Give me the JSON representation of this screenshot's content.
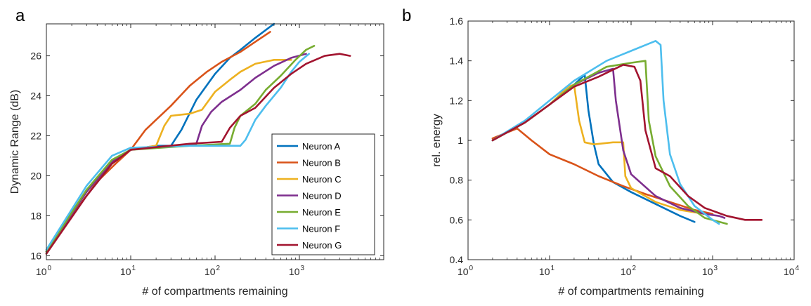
{
  "panels": {
    "a": "a",
    "b": "b"
  },
  "chart_data": [
    {
      "type": "line",
      "panel": "a",
      "xlabel": "# of compartments remaining",
      "ylabel": "Dynamic Range (dB)",
      "xscale": "log",
      "xlim": [
        1,
        10000
      ],
      "ylim": [
        15.8,
        27.6
      ],
      "xtick_labels": [
        "10",
        "10",
        "10",
        "10"
      ],
      "xtick_exps": [
        "0",
        "1",
        "2",
        "3"
      ],
      "xtick_values": [
        1,
        10,
        100,
        1000
      ],
      "ytick_labels": [
        "16",
        "18",
        "20",
        "22",
        "24",
        "26"
      ],
      "ytick_values": [
        16,
        18,
        20,
        22,
        24,
        26
      ],
      "legend": {
        "position": "lower-right",
        "entries": [
          "Neuron A",
          "Neuron B",
          "Neuron C",
          "Neuron D",
          "Neuron E",
          "Neuron F",
          "Neuron G"
        ]
      },
      "series": [
        {
          "name": "Neuron A",
          "color": "#0072bd",
          "points": [
            [
              1,
              16.2
            ],
            [
              2,
              18.2
            ],
            [
              4,
              19.9
            ],
            [
              7,
              20.9
            ],
            [
              10,
              21.3
            ],
            [
              20,
              21.5
            ],
            [
              30,
              21.5
            ],
            [
              40,
              22.3
            ],
            [
              60,
              23.8
            ],
            [
              100,
              25.1
            ],
            [
              150,
              25.9
            ],
            [
              200,
              26.3
            ],
            [
              300,
              26.9
            ],
            [
              500,
              27.6
            ]
          ]
        },
        {
          "name": "Neuron B",
          "color": "#d95319",
          "points": [
            [
              1,
              16.1
            ],
            [
              2,
              18.0
            ],
            [
              4,
              19.7
            ],
            [
              7,
              20.7
            ],
            [
              10,
              21.3
            ],
            [
              15,
              22.3
            ],
            [
              20,
              22.8
            ],
            [
              30,
              23.5
            ],
            [
              50,
              24.5
            ],
            [
              80,
              25.2
            ],
            [
              120,
              25.7
            ],
            [
              200,
              26.2
            ],
            [
              300,
              26.7
            ],
            [
              450,
              27.2
            ]
          ]
        },
        {
          "name": "Neuron C",
          "color": "#edb120",
          "points": [
            [
              1,
              16.2
            ],
            [
              3,
              19.2
            ],
            [
              6,
              20.7
            ],
            [
              10,
              21.3
            ],
            [
              20,
              21.5
            ],
            [
              25,
              22.5
            ],
            [
              30,
              23.0
            ],
            [
              50,
              23.1
            ],
            [
              70,
              23.3
            ],
            [
              100,
              24.2
            ],
            [
              150,
              24.8
            ],
            [
              200,
              25.2
            ],
            [
              300,
              25.6
            ],
            [
              500,
              25.8
            ],
            [
              800,
              25.8
            ]
          ]
        },
        {
          "name": "Neuron D",
          "color": "#7e2f8e",
          "points": [
            [
              1,
              16.2
            ],
            [
              3,
              19.2
            ],
            [
              6,
              20.7
            ],
            [
              10,
              21.3
            ],
            [
              30,
              21.5
            ],
            [
              60,
              21.6
            ],
            [
              70,
              22.5
            ],
            [
              90,
              23.2
            ],
            [
              120,
              23.7
            ],
            [
              200,
              24.3
            ],
            [
              300,
              24.9
            ],
            [
              500,
              25.5
            ],
            [
              800,
              25.9
            ],
            [
              1200,
              26.1
            ]
          ]
        },
        {
          "name": "Neuron E",
          "color": "#77ac30",
          "points": [
            [
              1,
              16.2
            ],
            [
              3,
              19.3
            ],
            [
              6,
              20.8
            ],
            [
              10,
              21.3
            ],
            [
              50,
              21.5
            ],
            [
              150,
              21.6
            ],
            [
              170,
              22.4
            ],
            [
              200,
              23.0
            ],
            [
              300,
              23.6
            ],
            [
              400,
              24.3
            ],
            [
              600,
              25.0
            ],
            [
              900,
              25.8
            ],
            [
              1200,
              26.3
            ],
            [
              1500,
              26.5
            ]
          ]
        },
        {
          "name": "Neuron F",
          "color": "#4dbeee",
          "points": [
            [
              1,
              16.3
            ],
            [
              3,
              19.5
            ],
            [
              6,
              21.0
            ],
            [
              10,
              21.4
            ],
            [
              50,
              21.5
            ],
            [
              200,
              21.5
            ],
            [
              230,
              21.8
            ],
            [
              300,
              22.8
            ],
            [
              400,
              23.5
            ],
            [
              600,
              24.4
            ],
            [
              800,
              25.2
            ],
            [
              1000,
              25.7
            ],
            [
              1300,
              26.1
            ]
          ]
        },
        {
          "name": "Neuron G",
          "color": "#a2142f",
          "points": [
            [
              1,
              16.1
            ],
            [
              3,
              19.0
            ],
            [
              6,
              20.6
            ],
            [
              10,
              21.3
            ],
            [
              50,
              21.6
            ],
            [
              120,
              21.7
            ],
            [
              150,
              22.4
            ],
            [
              200,
              23.0
            ],
            [
              300,
              23.4
            ],
            [
              500,
              24.4
            ],
            [
              800,
              25.1
            ],
            [
              1200,
              25.6
            ],
            [
              2000,
              26.0
            ],
            [
              3000,
              26.1
            ],
            [
              4000,
              26.0
            ]
          ]
        }
      ]
    },
    {
      "type": "line",
      "panel": "b",
      "xlabel": "# of compartments remaining",
      "ylabel": "rel. energy",
      "xscale": "log",
      "xlim": [
        1,
        10000
      ],
      "ylim": [
        0.4,
        1.6
      ],
      "xtick_labels": [
        "10",
        "10",
        "10",
        "10",
        "10"
      ],
      "xtick_exps": [
        "0",
        "1",
        "2",
        "3",
        "4"
      ],
      "xtick_values": [
        1,
        10,
        100,
        1000,
        10000
      ],
      "ytick_labels": [
        "0.4",
        "0.6",
        "0.8",
        "1",
        "1.2",
        "1.4",
        "1.6"
      ],
      "ytick_values": [
        0.4,
        0.6,
        0.8,
        1.0,
        1.2,
        1.4,
        1.6
      ],
      "series": [
        {
          "name": "Neuron A",
          "color": "#0072bd",
          "points": [
            [
              2,
              1.0
            ],
            [
              5,
              1.09
            ],
            [
              10,
              1.18
            ],
            [
              20,
              1.28
            ],
            [
              27,
              1.33
            ],
            [
              30,
              1.15
            ],
            [
              35,
              0.98
            ],
            [
              40,
              0.88
            ],
            [
              60,
              0.79
            ],
            [
              100,
              0.74
            ],
            [
              200,
              0.68
            ],
            [
              400,
              0.62
            ],
            [
              600,
              0.59
            ]
          ]
        },
        {
          "name": "Neuron B",
          "color": "#d95319",
          "points": [
            [
              2,
              1.01
            ],
            [
              4,
              1.06
            ],
            [
              6,
              1.0
            ],
            [
              10,
              0.93
            ],
            [
              20,
              0.88
            ],
            [
              40,
              0.82
            ],
            [
              80,
              0.77
            ],
            [
              150,
              0.73
            ],
            [
              300,
              0.69
            ],
            [
              600,
              0.65
            ],
            [
              1000,
              0.63
            ]
          ]
        },
        {
          "name": "Neuron C",
          "color": "#edb120",
          "points": [
            [
              2,
              1.0
            ],
            [
              5,
              1.09
            ],
            [
              10,
              1.18
            ],
            [
              17,
              1.27
            ],
            [
              20,
              1.28
            ],
            [
              23,
              1.1
            ],
            [
              27,
              0.99
            ],
            [
              35,
              0.98
            ],
            [
              60,
              0.99
            ],
            [
              80,
              0.99
            ],
            [
              85,
              0.82
            ],
            [
              100,
              0.76
            ],
            [
              200,
              0.69
            ],
            [
              400,
              0.65
            ],
            [
              800,
              0.63
            ]
          ]
        },
        {
          "name": "Neuron D",
          "color": "#7e2f8e",
          "points": [
            [
              2,
              1.0
            ],
            [
              5,
              1.09
            ],
            [
              10,
              1.18
            ],
            [
              20,
              1.28
            ],
            [
              40,
              1.34
            ],
            [
              60,
              1.36
            ],
            [
              65,
              1.2
            ],
            [
              80,
              0.95
            ],
            [
              100,
              0.83
            ],
            [
              200,
              0.72
            ],
            [
              400,
              0.66
            ],
            [
              800,
              0.63
            ],
            [
              1200,
              0.62
            ],
            [
              1400,
              0.61
            ]
          ]
        },
        {
          "name": "Neuron E",
          "color": "#77ac30",
          "points": [
            [
              2,
              1.0
            ],
            [
              5,
              1.09
            ],
            [
              10,
              1.18
            ],
            [
              20,
              1.28
            ],
            [
              50,
              1.37
            ],
            [
              100,
              1.39
            ],
            [
              150,
              1.4
            ],
            [
              165,
              1.1
            ],
            [
              200,
              0.92
            ],
            [
              300,
              0.77
            ],
            [
              500,
              0.67
            ],
            [
              800,
              0.61
            ],
            [
              1500,
              0.58
            ]
          ]
        },
        {
          "name": "Neuron F",
          "color": "#4dbeee",
          "points": [
            [
              2,
              1.0
            ],
            [
              5,
              1.1
            ],
            [
              10,
              1.2
            ],
            [
              20,
              1.3
            ],
            [
              50,
              1.4
            ],
            [
              100,
              1.45
            ],
            [
              200,
              1.5
            ],
            [
              230,
              1.48
            ],
            [
              250,
              1.2
            ],
            [
              300,
              0.93
            ],
            [
              400,
              0.78
            ],
            [
              600,
              0.67
            ],
            [
              1000,
              0.6
            ],
            [
              1200,
              0.58
            ]
          ]
        },
        {
          "name": "Neuron G",
          "color": "#a2142f",
          "points": [
            [
              2,
              1.0
            ],
            [
              5,
              1.09
            ],
            [
              10,
              1.18
            ],
            [
              20,
              1.27
            ],
            [
              40,
              1.32
            ],
            [
              80,
              1.38
            ],
            [
              110,
              1.37
            ],
            [
              130,
              1.3
            ],
            [
              150,
              1.05
            ],
            [
              200,
              0.86
            ],
            [
              300,
              0.82
            ],
            [
              500,
              0.72
            ],
            [
              800,
              0.66
            ],
            [
              1500,
              0.62
            ],
            [
              2500,
              0.6
            ],
            [
              4000,
              0.6
            ]
          ]
        }
      ]
    }
  ]
}
